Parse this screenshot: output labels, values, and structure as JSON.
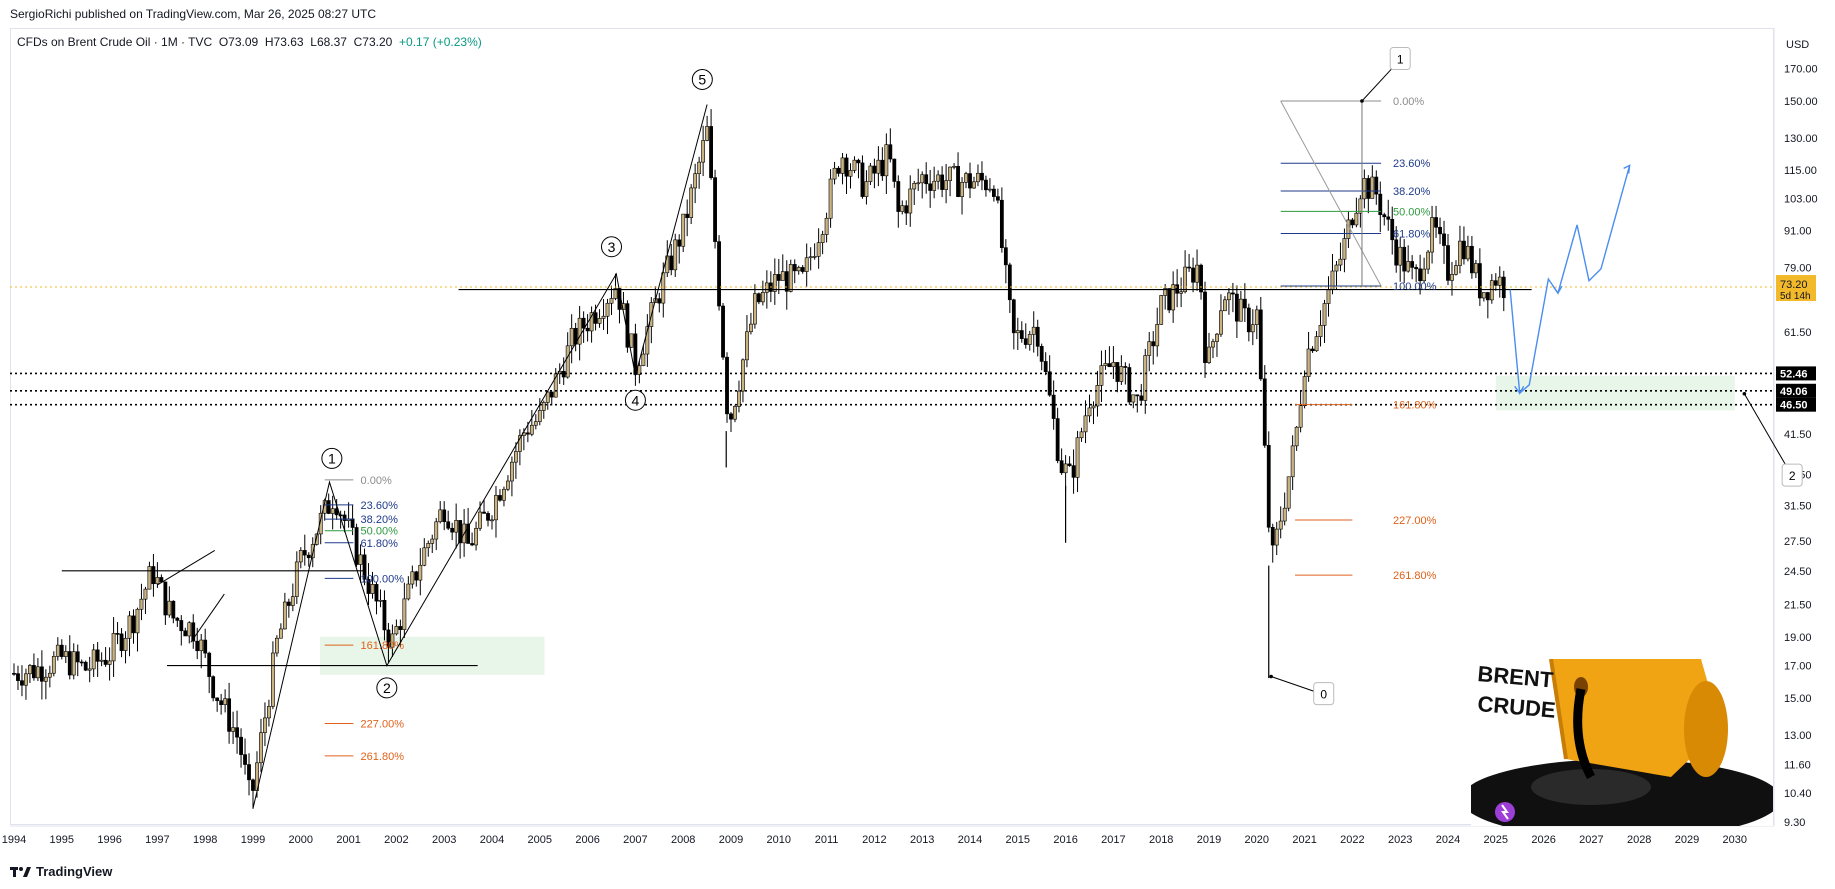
{
  "published": "SergioRichi published on TradingView.com, Mar 26, 2025 08:27 UTC",
  "legend": {
    "symbol": "CFDs on Brent Crude Oil · 1M · TVC",
    "open": "O73.09",
    "high": "H73.63",
    "low": "L68.37",
    "close": "C73.20",
    "change": "+0.17 (+0.23%)"
  },
  "currency": "USD",
  "footer_brand": "TradingView",
  "colors": {
    "bull": "#c9b382",
    "bear": "#000000",
    "fib_blue": "#1e3a8a",
    "fib_green": "#2e9a3f",
    "fib_orange": "#e0621b",
    "projection": "#4a8df0",
    "zone": "#e8f5e9",
    "price_tag": "#f2b92a"
  },
  "chart_data": {
    "type": "candlestick",
    "title": "",
    "x_axis": {
      "ticks": [
        "1994",
        "1995",
        "1996",
        "1997",
        "1998",
        "1999",
        "2000",
        "2001",
        "2002",
        "2003",
        "2004",
        "2005",
        "2006",
        "2007",
        "2008",
        "2009",
        "2010",
        "2011",
        "2012",
        "2013",
        "2014",
        "2015",
        "2016",
        "2017",
        "2018",
        "2019",
        "2020",
        "2021",
        "2022",
        "2023",
        "2024",
        "2025",
        "2026",
        "2027",
        "2028",
        "2029",
        "2030"
      ]
    },
    "y_axis": {
      "scale": "log",
      "ticks": [
        "170.00",
        "150.00",
        "130.00",
        "115.00",
        "103.00",
        "91.00",
        "79.00",
        "61.50",
        "41.50",
        "35.50",
        "31.50",
        "27.50",
        "24.50",
        "21.50",
        "19.00",
        "17.00",
        "15.00",
        "13.00",
        "11.60",
        "10.40",
        "9.30"
      ]
    },
    "price_path_yearly": [
      {
        "t": 1994.0,
        "p": 16.5
      },
      {
        "t": 1994.5,
        "p": 16.8
      },
      {
        "t": 1995.0,
        "p": 17.5
      },
      {
        "t": 1995.5,
        "p": 16.8
      },
      {
        "t": 1996.0,
        "p": 17.8
      },
      {
        "t": 1996.5,
        "p": 20.5
      },
      {
        "t": 1996.9,
        "p": 24.5
      },
      {
        "t": 1997.3,
        "p": 20.5
      },
      {
        "t": 1997.8,
        "p": 19.5
      },
      {
        "t": 1998.2,
        "p": 15.5
      },
      {
        "t": 1998.7,
        "p": 12.8
      },
      {
        "t": 1998.95,
        "p": 10.0
      },
      {
        "t": 1999.5,
        "p": 18.5
      },
      {
        "t": 2000.0,
        "p": 25.5
      },
      {
        "t": 2000.7,
        "p": 33.0
      },
      {
        "t": 2001.2,
        "p": 26.0
      },
      {
        "t": 2001.9,
        "p": 18.5
      },
      {
        "t": 2002.5,
        "p": 25.5
      },
      {
        "t": 2003.0,
        "p": 31.5
      },
      {
        "t": 2003.5,
        "p": 27.0
      },
      {
        "t": 2004.0,
        "p": 31.5
      },
      {
        "t": 2004.7,
        "p": 42.5
      },
      {
        "t": 2005.0,
        "p": 44.0
      },
      {
        "t": 2005.7,
        "p": 60.0
      },
      {
        "t": 2006.6,
        "p": 74.0
      },
      {
        "t": 2007.0,
        "p": 54.0
      },
      {
        "t": 2007.5,
        "p": 72.0
      },
      {
        "t": 2008.0,
        "p": 92.0
      },
      {
        "t": 2008.5,
        "p": 133.0
      },
      {
        "t": 2008.95,
        "p": 43.0
      },
      {
        "t": 2009.5,
        "p": 68.0
      },
      {
        "t": 2010.0,
        "p": 76.0
      },
      {
        "t": 2010.5,
        "p": 75.0
      },
      {
        "t": 2011.0,
        "p": 100.0
      },
      {
        "t": 2011.3,
        "p": 123.0
      },
      {
        "t": 2011.8,
        "p": 108.0
      },
      {
        "t": 2012.3,
        "p": 122.0
      },
      {
        "t": 2012.5,
        "p": 97.0
      },
      {
        "t": 2013.0,
        "p": 112.0
      },
      {
        "t": 2013.8,
        "p": 110.0
      },
      {
        "t": 2014.5,
        "p": 110.0
      },
      {
        "t": 2014.9,
        "p": 60.0
      },
      {
        "t": 2015.4,
        "p": 63.0
      },
      {
        "t": 2015.9,
        "p": 37.0
      },
      {
        "t": 2016.1,
        "p": 35.0
      },
      {
        "t": 2016.5,
        "p": 48.0
      },
      {
        "t": 2017.0,
        "p": 55.0
      },
      {
        "t": 2017.5,
        "p": 47.0
      },
      {
        "t": 2018.0,
        "p": 68.0
      },
      {
        "t": 2018.8,
        "p": 80.0
      },
      {
        "t": 2018.95,
        "p": 53.0
      },
      {
        "t": 2019.3,
        "p": 72.0
      },
      {
        "t": 2019.8,
        "p": 64.0
      },
      {
        "t": 2020.0,
        "p": 66.0
      },
      {
        "t": 2020.3,
        "p": 25.0
      },
      {
        "t": 2020.8,
        "p": 40.0
      },
      {
        "t": 2021.0,
        "p": 55.0
      },
      {
        "t": 2021.8,
        "p": 84.0
      },
      {
        "t": 2022.0,
        "p": 98.0
      },
      {
        "t": 2022.2,
        "p": 110.0
      },
      {
        "t": 2022.5,
        "p": 105.0
      },
      {
        "t": 2022.9,
        "p": 85.0
      },
      {
        "t": 2023.3,
        "p": 75.0
      },
      {
        "t": 2023.7,
        "p": 92.0
      },
      {
        "t": 2024.0,
        "p": 78.0
      },
      {
        "t": 2024.3,
        "p": 88.0
      },
      {
        "t": 2024.7,
        "p": 72.0
      },
      {
        "t": 2025.0,
        "p": 76.0
      },
      {
        "t": 2025.2,
        "p": 73.2
      }
    ],
    "horizontal_levels": [
      "52.46",
      "49.06",
      "46.50"
    ],
    "current_price": "73.20",
    "countdown": "5d 14h",
    "fib_2022": {
      "levels": [
        {
          "label": "0.00%",
          "color": "gray"
        },
        {
          "label": "23.60%",
          "color": "blue"
        },
        {
          "label": "38.20%",
          "color": "blue"
        },
        {
          "label": "50.00%",
          "color": "green"
        },
        {
          "label": "61.80%",
          "color": "blue"
        },
        {
          "label": "100.00%",
          "color": "blue"
        },
        {
          "label": "161.80%",
          "color": "orange"
        },
        {
          "label": "227.00%",
          "color": "orange"
        },
        {
          "label": "261.80%",
          "color": "orange"
        }
      ]
    },
    "fib_2000": {
      "levels": [
        {
          "label": "0.00%",
          "color": "gray"
        },
        {
          "label": "23.60%",
          "color": "blue"
        },
        {
          "label": "38.20%",
          "color": "blue"
        },
        {
          "label": "50.00%",
          "color": "green"
        },
        {
          "label": "61.80%",
          "color": "blue"
        },
        {
          "label": "100.00%",
          "color": "blue"
        },
        {
          "label": "161.80%",
          "color": "orange"
        },
        {
          "label": "227.00%",
          "color": "orange"
        },
        {
          "label": "261.80%",
          "color": "orange"
        }
      ]
    },
    "wave_labels_circled": [
      "1",
      "2",
      "3",
      "4",
      "5"
    ],
    "wave_labels_boxed": [
      "1",
      "2",
      "0"
    ]
  },
  "illustration": {
    "line1": "BRENT",
    "line2": "CRUDE"
  }
}
